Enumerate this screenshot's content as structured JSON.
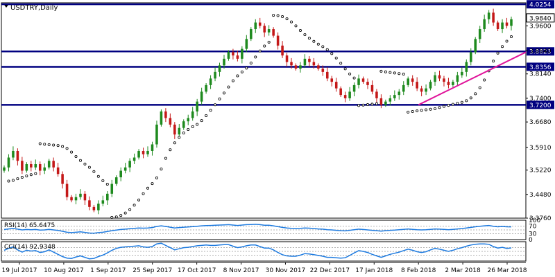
{
  "chart_data": {
    "type": "candlestick",
    "symbol_label": "USDTRY,Daily",
    "x_tick_labels": [
      "19 Jul 2017",
      "10 Aug 2017",
      "1 Sep 2017",
      "25 Sep 2017",
      "17 Oct 2017",
      "8 Nov 2017",
      "30 Nov 2017",
      "22 Dec 2017",
      "17 Jan 2018",
      "8 Feb 2018",
      "2 Mar 2018",
      "26 Mar 2018"
    ],
    "y_axis": {
      "min": 3.376,
      "max": 4.03,
      "tick_labels": [
        "3.3760",
        "3.4480",
        "3.5220",
        "3.5910",
        "3.6680",
        "3.7400",
        "3.8140",
        "3.8840",
        "3.9600"
      ]
    },
    "levels": [
      {
        "label": "4.0254",
        "value": 4.0254
      },
      {
        "label": "3.9840",
        "value": 3.984
      },
      {
        "label": "3.8823",
        "value": 3.8823
      },
      {
        "label": "3.8356",
        "value": 3.8356
      },
      {
        "label": "3.7200",
        "value": 3.72
      }
    ],
    "trendline": {
      "start": [
        "8 Feb 2018",
        3.72
      ],
      "end": [
        "26 Mar 2018",
        3.88
      ]
    },
    "colors": {
      "bull": "#1e8a1e",
      "bear": "#c41818",
      "level_line": "#000080",
      "trendline": "#e0149a",
      "rsi_line": "#1e7be0",
      "cci_line": "#1e7be0",
      "label_bg": "#000080",
      "current_price_bg": "#ffffff"
    },
    "closes": [
      3.53,
      3.56,
      3.58,
      3.55,
      3.52,
      3.54,
      3.53,
      3.54,
      3.52,
      3.53,
      3.55,
      3.53,
      3.51,
      3.48,
      3.44,
      3.43,
      3.44,
      3.45,
      3.43,
      3.41,
      3.4,
      3.42,
      3.43,
      3.45,
      3.48,
      3.5,
      3.52,
      3.53,
      3.55,
      3.56,
      3.58,
      3.57,
      3.58,
      3.6,
      3.66,
      3.7,
      3.68,
      3.66,
      3.63,
      3.65,
      3.67,
      3.68,
      3.7,
      3.73,
      3.76,
      3.78,
      3.8,
      3.82,
      3.84,
      3.86,
      3.88,
      3.87,
      3.86,
      3.89,
      3.92,
      3.95,
      3.97,
      3.96,
      3.94,
      3.95,
      3.93,
      3.9,
      3.87,
      3.85,
      3.84,
      3.83,
      3.84,
      3.86,
      3.85,
      3.84,
      3.83,
      3.82,
      3.8,
      3.79,
      3.77,
      3.75,
      3.74,
      3.76,
      3.78,
      3.8,
      3.79,
      3.78,
      3.76,
      3.74,
      3.72,
      3.73,
      3.74,
      3.75,
      3.76,
      3.78,
      3.8,
      3.79,
      3.77,
      3.76,
      3.77,
      3.79,
      3.81,
      3.8,
      3.79,
      3.78,
      3.79,
      3.81,
      3.82,
      3.85,
      3.88,
      3.92,
      3.95,
      3.98,
      4.0,
      3.97,
      3.95,
      3.97,
      3.96,
      3.98
    ],
    "rsi": {
      "label": "RSI(14)",
      "value_label": "65.6475",
      "values": [
        52,
        55,
        58,
        54,
        50,
        52,
        51,
        52,
        49,
        50,
        53,
        50,
        47,
        43,
        38,
        36,
        38,
        40,
        37,
        34,
        33,
        36,
        38,
        42,
        46,
        49,
        52,
        54,
        56,
        58,
        60,
        59,
        60,
        62,
        68,
        71,
        68,
        64,
        60,
        62,
        64,
        65,
        67,
        69,
        71,
        72,
        73,
        74,
        75,
        76,
        77,
        75,
        73,
        75,
        77,
        78,
        79,
        77,
        74,
        74,
        71,
        67,
        63,
        60,
        58,
        57,
        58,
        60,
        59,
        57,
        55,
        54,
        51,
        50,
        48,
        46,
        45,
        48,
        51,
        54,
        52,
        50,
        48,
        46,
        44,
        46,
        48,
        49,
        51,
        53,
        55,
        53,
        51,
        50,
        51,
        53,
        55,
        54,
        53,
        51,
        53,
        55,
        57,
        60,
        63,
        66,
        69,
        71,
        73,
        69,
        66,
        68,
        66,
        65.6
      ]
    },
    "cci": {
      "label": "CCI(14)",
      "value_label": "92.9348",
      "values": [
        30,
        80,
        120,
        40,
        -20,
        30,
        10,
        20,
        -30,
        -10,
        40,
        -20,
        -80,
        -140,
        -180,
        -190,
        -150,
        -120,
        -160,
        -200,
        -190,
        -140,
        -100,
        -40,
        30,
        80,
        110,
        120,
        130,
        140,
        150,
        120,
        110,
        130,
        200,
        220,
        160,
        100,
        40,
        70,
        100,
        110,
        130,
        150,
        160,
        170,
        160,
        160,
        170,
        180,
        180,
        140,
        100,
        120,
        150,
        170,
        170,
        130,
        90,
        90,
        40,
        -30,
        -90,
        -120,
        -130,
        -130,
        -100,
        -60,
        -70,
        -90,
        -110,
        -130,
        -160,
        -160,
        -170,
        -180,
        -170,
        -110,
        -40,
        20,
        0,
        -30,
        -80,
        -120,
        -160,
        -120,
        -80,
        -50,
        -20,
        20,
        60,
        30,
        -10,
        -30,
        -10,
        40,
        80,
        60,
        30,
        0,
        30,
        70,
        100,
        140,
        170,
        190,
        200,
        200,
        190,
        130,
        90,
        110,
        80,
        92.9
      ]
    }
  }
}
